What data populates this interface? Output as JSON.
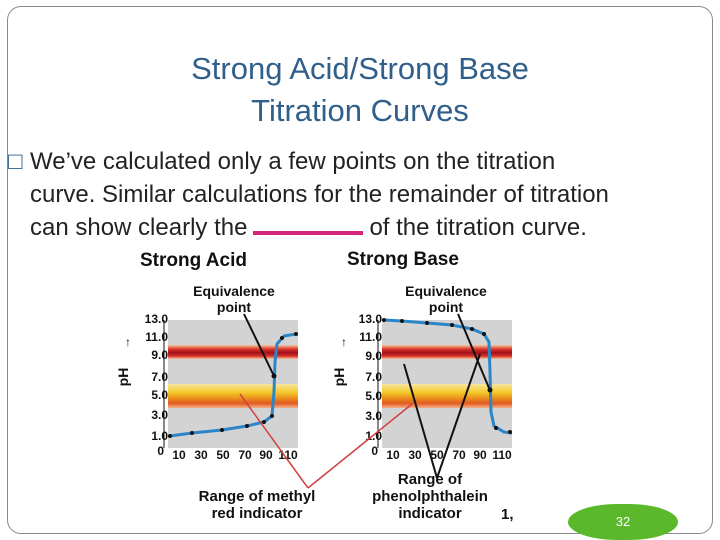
{
  "slide": {
    "title_line1": "Strong Acid/Strong Base",
    "title_line2": "Titration Curves",
    "bullet_line1": "We’ve calculated only a few points on the titration",
    "bullet_line2": "curve.  Similar calculations for the remainder of titration",
    "bullet_line3a": "can show clearly the",
    "bullet_line3b": "of the titration curve.",
    "page_number": "32"
  },
  "figure": {
    "acid_heading": "Strong Acid",
    "base_heading": "Strong Base",
    "equivalence_label_l1": "Equivalence",
    "equivalence_label_l2": "point",
    "y_axis_label": "pH",
    "y_ticks": [
      "13.0",
      "11.0",
      "9.0",
      "7.0",
      "5.0",
      "3.0",
      "1.0",
      "0"
    ],
    "x_ticks": [
      "10",
      "30",
      "50",
      "70",
      "90",
      "110"
    ],
    "methyl_label_l1": "Range of methyl",
    "methyl_label_l2": "red indicator",
    "phenol_label_l1": "Range of",
    "phenol_label_l2": "phenolphthalein",
    "phenol_label_l3": "indicator",
    "cut_off_text": "1,"
  }
}
